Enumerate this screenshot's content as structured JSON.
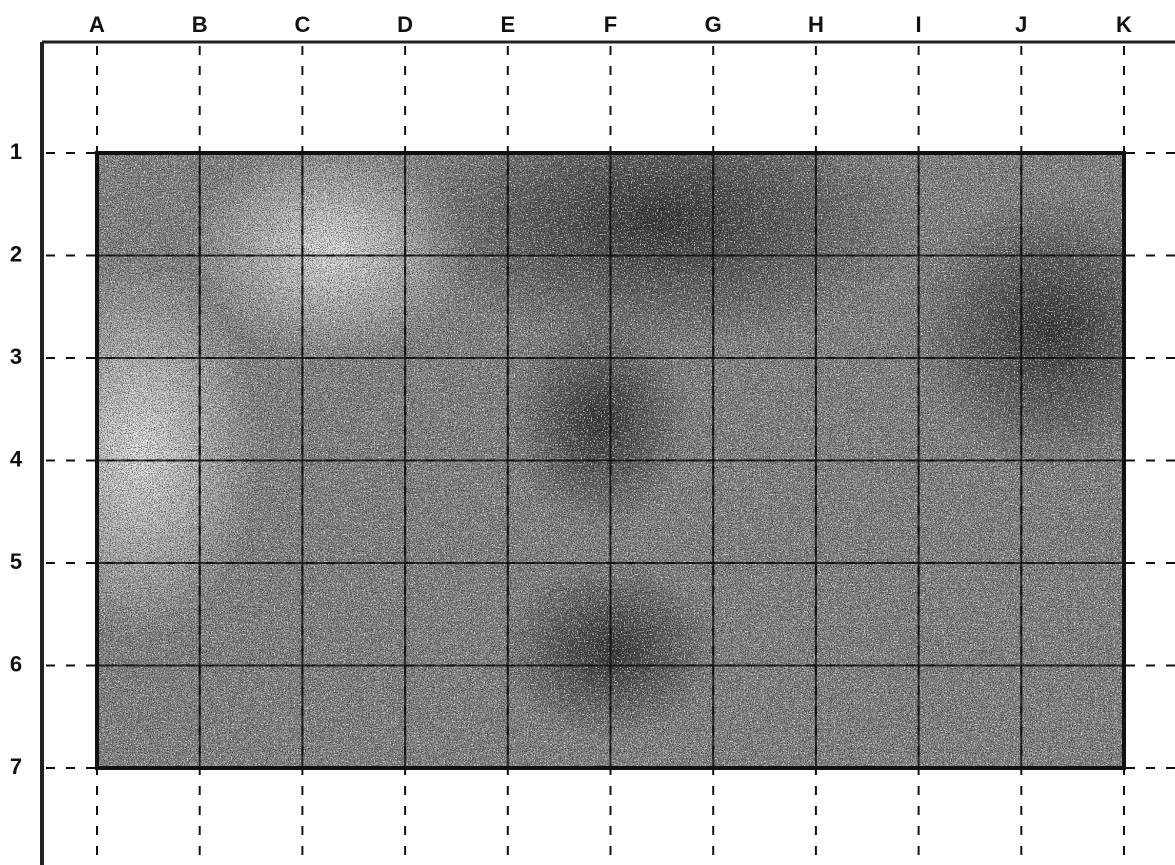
{
  "grid": {
    "columns": [
      "A",
      "B",
      "C",
      "D",
      "E",
      "F",
      "G",
      "H",
      "I",
      "J",
      "K"
    ],
    "rows": [
      "1",
      "2",
      "3",
      "4",
      "5",
      "6",
      "7"
    ]
  }
}
